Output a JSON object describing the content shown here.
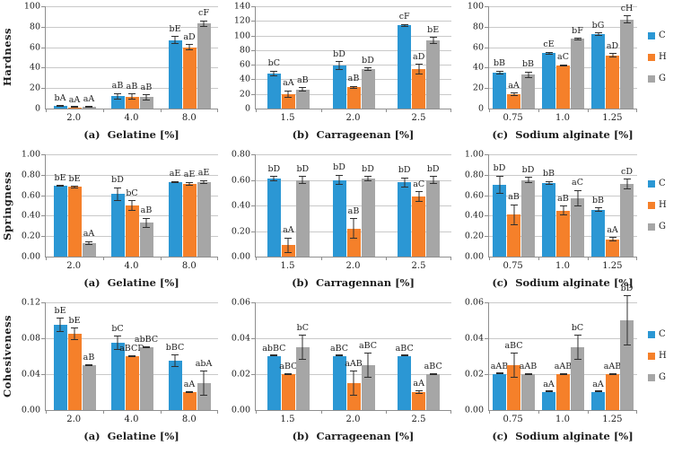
{
  "colors": {
    "series": {
      "C": "#2B97D4",
      "H": "#F5802A",
      "G": "#A6A6A6"
    },
    "error": "#2f2f2f",
    "grid": "#c9c9c9",
    "axis": "#8f8f8f",
    "text": "#1c1c1c"
  },
  "legend": {
    "items": [
      "C",
      "H",
      "G"
    ]
  },
  "chart_data": [
    {
      "type": "bar",
      "ylabel": "Hardness",
      "xtitle": "(a)  Gelatine [%]",
      "ylim": [
        0,
        100
      ],
      "ystep": 20,
      "ydecimals": 0,
      "grid": true,
      "categories": [
        "2.0",
        "4.0",
        "8.0"
      ],
      "series": [
        {
          "name": "C",
          "values": [
            2.5,
            12,
            67
          ],
          "errors": [
            0.6,
            3,
            4
          ],
          "labels": [
            "bA",
            "aB",
            "bE"
          ]
        },
        {
          "name": "H",
          "values": [
            1.2,
            11.5,
            60
          ],
          "errors": [
            0.3,
            3,
            3
          ],
          "labels": [
            "aA",
            "aB",
            "aD"
          ]
        },
        {
          "name": "G",
          "values": [
            1.5,
            11,
            83
          ],
          "errors": [
            0.4,
            3,
            3
          ],
          "labels": [
            "aA",
            "aB",
            "cF"
          ]
        }
      ]
    },
    {
      "type": "bar",
      "ylabel": null,
      "xtitle": "(b)  Carrageenan [%]",
      "ylim": [
        0,
        140
      ],
      "ystep": 20,
      "ydecimals": 0,
      "grid": true,
      "categories": [
        "1.5",
        "2.0",
        "2.5"
      ],
      "series": [
        {
          "name": "C",
          "values": [
            48,
            59,
            114
          ],
          "errors": [
            4,
            6,
            2
          ],
          "labels": [
            "bC",
            "bD",
            "cF"
          ]
        },
        {
          "name": "H",
          "values": [
            20,
            29,
            54
          ],
          "errors": [
            5,
            2,
            7
          ],
          "labels": [
            "aA",
            "aB",
            "aD"
          ]
        },
        {
          "name": "G",
          "values": [
            26,
            54,
            93
          ],
          "errors": [
            3,
            2,
            5
          ],
          "labels": [
            "aB",
            "bD",
            "bE"
          ]
        }
      ]
    },
    {
      "type": "bar",
      "ylabel": null,
      "xtitle": "(c)  Sodium alginate [%]",
      "ylim": [
        0,
        100
      ],
      "ystep": 20,
      "ydecimals": 0,
      "grid": true,
      "categories": [
        "0.75",
        "1.0",
        "1.25"
      ],
      "series": [
        {
          "name": "C",
          "values": [
            35,
            54,
            73
          ],
          "errors": [
            2,
            1.5,
            1.5
          ],
          "labels": [
            "bB",
            "cE",
            "bG"
          ]
        },
        {
          "name": "H",
          "values": [
            14,
            42,
            52
          ],
          "errors": [
            1.5,
            1,
            2
          ],
          "labels": [
            "aA",
            "aC",
            "aD"
          ]
        },
        {
          "name": "G",
          "values": [
            33,
            68,
            87
          ],
          "errors": [
            3,
            1,
            4
          ],
          "labels": [
            "bB",
            "bF",
            "cH"
          ]
        }
      ]
    },
    {
      "type": "bar",
      "ylabel": "Springness",
      "xtitle": "(a)  Gelatine [%]",
      "ylim": [
        0,
        1.0
      ],
      "ystep": 0.2,
      "ydecimals": 2,
      "grid": true,
      "categories": [
        "2.0",
        "4.0",
        "8.0"
      ],
      "series": [
        {
          "name": "C",
          "values": [
            0.69,
            0.61,
            0.73
          ],
          "errors": [
            0.01,
            0.07,
            0.01
          ],
          "labels": [
            "bE",
            "bD",
            "aE"
          ]
        },
        {
          "name": "H",
          "values": [
            0.68,
            0.5,
            0.71
          ],
          "errors": [
            0.01,
            0.05,
            0.02
          ],
          "labels": [
            "bE",
            "bC",
            "aE"
          ]
        },
        {
          "name": "G",
          "values": [
            0.13,
            0.33,
            0.73
          ],
          "errors": [
            0.02,
            0.05,
            0.02
          ],
          "labels": [
            "aA",
            "aB",
            "aE"
          ]
        }
      ]
    },
    {
      "type": "bar",
      "ylabel": null,
      "xtitle": "(b)  Carragennan [%]",
      "ylim": [
        0,
        0.8
      ],
      "ystep": 0.2,
      "ydecimals": 2,
      "grid": true,
      "categories": [
        "1.5",
        "2.0",
        "2.5"
      ],
      "series": [
        {
          "name": "C",
          "values": [
            0.61,
            0.6,
            0.58
          ],
          "errors": [
            0.02,
            0.04,
            0.04
          ],
          "labels": [
            "bD",
            "bD",
            "bD"
          ]
        },
        {
          "name": "H",
          "values": [
            0.09,
            0.22,
            0.47
          ],
          "errors": [
            0.06,
            0.08,
            0.04
          ],
          "labels": [
            "aA",
            "aB",
            "aC"
          ]
        },
        {
          "name": "G",
          "values": [
            0.6,
            0.61,
            0.6
          ],
          "errors": [
            0.03,
            0.02,
            0.03
          ],
          "labels": [
            "bD",
            "bD",
            "bD"
          ]
        }
      ]
    },
    {
      "type": "bar",
      "ylabel": null,
      "xtitle": "(c)  Sodium alginate [%]",
      "ylim": [
        0,
        1.0
      ],
      "ystep": 0.2,
      "ydecimals": 2,
      "grid": true,
      "categories": [
        "0.75",
        "1.0",
        "1.25"
      ],
      "series": [
        {
          "name": "C",
          "values": [
            0.7,
            0.72,
            0.46
          ],
          "errors": [
            0.09,
            0.02,
            0.02
          ],
          "labels": [
            "bD",
            "bB",
            "bB"
          ]
        },
        {
          "name": "H",
          "values": [
            0.41,
            0.45,
            0.17
          ],
          "errors": [
            0.1,
            0.05,
            0.02
          ],
          "labels": [
            "aB",
            "aB",
            "aA"
          ]
        },
        {
          "name": "G",
          "values": [
            0.75,
            0.57,
            0.71
          ],
          "errors": [
            0.03,
            0.08,
            0.05
          ],
          "labels": [
            "bD",
            "aC",
            "cD"
          ]
        }
      ]
    },
    {
      "type": "bar",
      "ylabel": "Cohesiveness",
      "xtitle": "(a)  Gelatine [%]",
      "ylim": [
        0,
        0.12
      ],
      "ystep": 0.04,
      "ydecimals": 2,
      "grid": true,
      "categories": [
        "2.0",
        "4.0",
        "8.0"
      ],
      "series": [
        {
          "name": "C",
          "values": [
            0.095,
            0.075,
            0.055
          ],
          "errors": [
            0.008,
            0.008,
            0.007
          ],
          "labels": [
            "bE",
            "bC",
            "bBC"
          ]
        },
        {
          "name": "H",
          "values": [
            0.085,
            0.06,
            0.02
          ],
          "errors": [
            0.007,
            0.001,
            0.001
          ],
          "labels": [
            "bE",
            "aBCD",
            "aA"
          ]
        },
        {
          "name": "G",
          "values": [
            0.05,
            0.07,
            0.03
          ],
          "errors": [
            0.001,
            0.001,
            0.014
          ],
          "labels": [
            "aB",
            "abBC",
            "abA"
          ]
        }
      ]
    },
    {
      "type": "bar",
      "ylabel": null,
      "xtitle": "(b)  Carrageenan [%]",
      "ylim": [
        0,
        0.06
      ],
      "ystep": 0.02,
      "ydecimals": 2,
      "grid": true,
      "categories": [
        "1.5",
        "2.0",
        "2.5"
      ],
      "series": [
        {
          "name": "C",
          "values": [
            0.03,
            0.03,
            0.03
          ],
          "errors": [
            0.0002,
            0.0002,
            0.0002
          ],
          "labels": [
            "abBC",
            "aBC",
            "aBC"
          ]
        },
        {
          "name": "H",
          "values": [
            0.02,
            0.015,
            0.01
          ],
          "errors": [
            0.0005,
            0.007,
            0.001
          ],
          "labels": [
            "aBC",
            "aAB",
            "aA"
          ]
        },
        {
          "name": "G",
          "values": [
            0.035,
            0.025,
            0.02
          ],
          "errors": [
            0.007,
            0.007,
            0.0005
          ],
          "labels": [
            "bC",
            "aBC",
            "aBC"
          ]
        }
      ]
    },
    {
      "type": "bar",
      "ylabel": null,
      "xtitle": "(c)  Sodium alginate [%]",
      "ylim": [
        0,
        0.06
      ],
      "ystep": 0.02,
      "ydecimals": 2,
      "grid": true,
      "categories": [
        "0.75",
        "1.0",
        "1.25"
      ],
      "series": [
        {
          "name": "C",
          "values": [
            0.02,
            0.01,
            0.01
          ],
          "errors": [
            0.0002,
            0.0002,
            0.0002
          ],
          "labels": [
            "aAB",
            "aA",
            "aA"
          ]
        },
        {
          "name": "H",
          "values": [
            0.025,
            0.02,
            0.02
          ],
          "errors": [
            0.007,
            0.0005,
            0.0005
          ],
          "labels": [
            "aBC",
            "aAB",
            "aAB"
          ]
        },
        {
          "name": "G",
          "values": [
            0.02,
            0.035,
            0.05
          ],
          "errors": [
            0.0005,
            0.007,
            0.014
          ],
          "labels": [
            "aAB",
            "bC",
            "bD"
          ]
        }
      ]
    }
  ]
}
